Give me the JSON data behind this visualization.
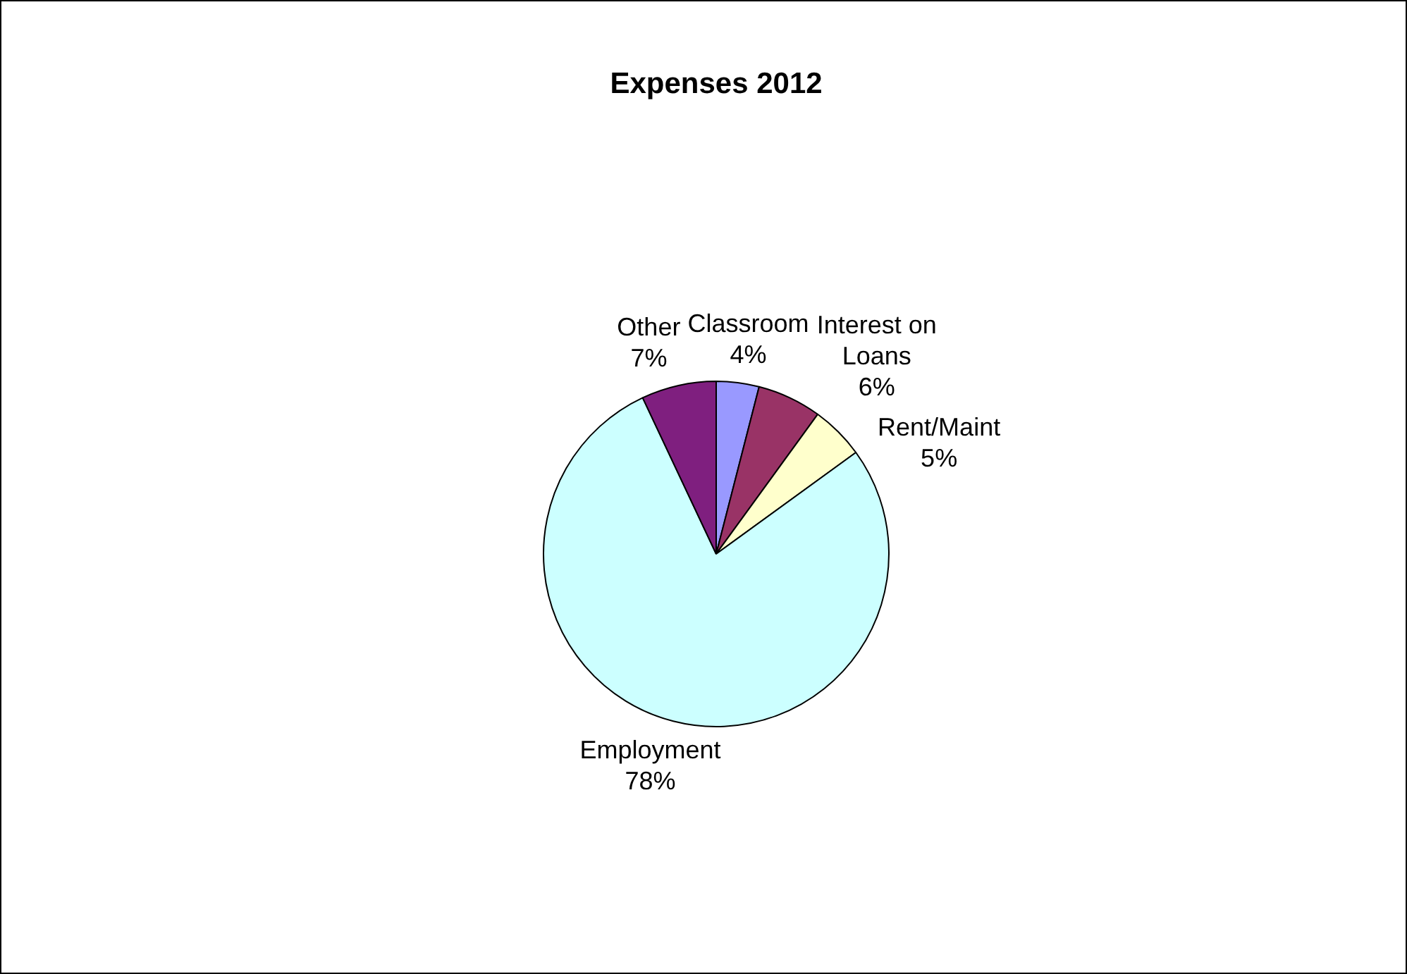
{
  "chart_data": {
    "type": "pie",
    "title": "Expenses 2012",
    "categories": [
      "Classroom",
      "Interest on Loans",
      "Rent/Maint",
      "Employment",
      "Other"
    ],
    "values": [
      4,
      6,
      5,
      78,
      7
    ],
    "value_labels": [
      "4%",
      "6%",
      "5%",
      "78%",
      "7%"
    ],
    "colors": [
      "#9999ff",
      "#993366",
      "#ffffcc",
      "#ccffff",
      "#7f1f7f"
    ]
  }
}
